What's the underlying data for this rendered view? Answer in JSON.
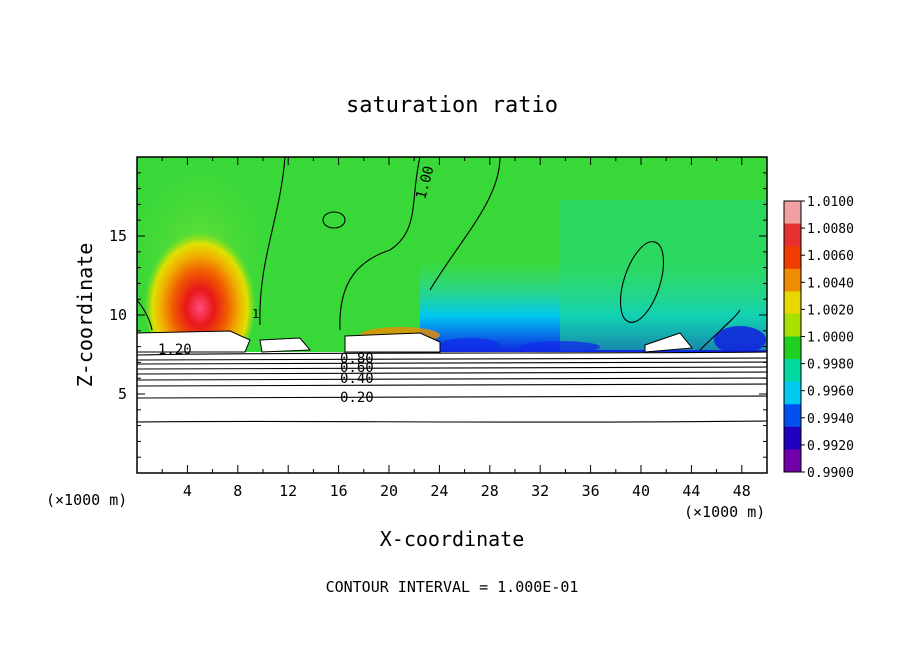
{
  "chart_data": {
    "type": "heatmap",
    "title": "saturation ratio",
    "xlabel": "X-coordinate",
    "ylabel": "Z-coordinate",
    "x_unit_left": "(×1000 m)",
    "x_unit_right": "(×1000 m)",
    "xlim": [
      0,
      50
    ],
    "ylim": [
      0,
      20
    ],
    "x_ticks": [
      "4",
      "8",
      "12",
      "16",
      "20",
      "24",
      "28",
      "32",
      "36",
      "40",
      "44",
      "48"
    ],
    "y_ticks": [
      "5",
      "10",
      "15"
    ],
    "footer": "CONTOUR INTERVAL = 1.000E-01",
    "contour_labels": [
      "1.20",
      "0.80",
      "0.60",
      "0.40",
      "0.20",
      "1.00",
      "1"
    ],
    "colorbar": {
      "labels": [
        "1.0100",
        "1.0080",
        "1.0060",
        "1.0040",
        "1.0020",
        "1.0000",
        "0.9980",
        "0.9960",
        "0.9940",
        "0.9920",
        "0.9900"
      ],
      "colors": [
        "#f0a0a0",
        "#e83030",
        "#f03c00",
        "#f08c00",
        "#e8d800",
        "#a8e000",
        "#20d020",
        "#00d8a0",
        "#00c8f0",
        "#0050f0",
        "#2000c0",
        "#7000a8"
      ]
    }
  }
}
